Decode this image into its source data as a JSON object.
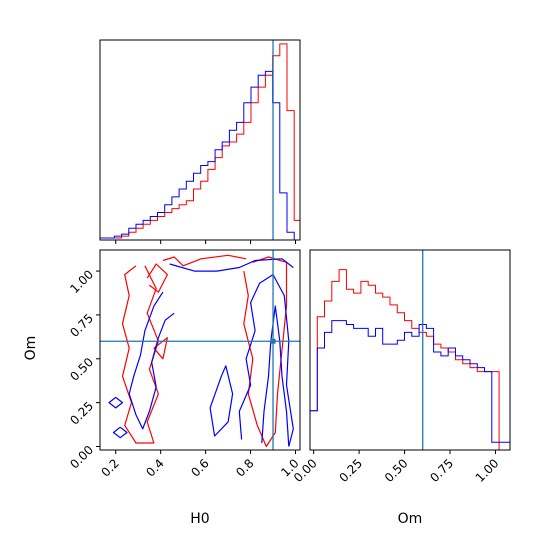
{
  "chart_data": {
    "type": "corner",
    "parameters": [
      "H0",
      "Om"
    ],
    "truth": {
      "H0": 0.9,
      "Om": 0.6
    },
    "colors": {
      "series_a": "#ff0000",
      "series_b": "#0000ff",
      "truth": "#1f77b4"
    },
    "panels": [
      {
        "id": "hist-H0",
        "type": "step-histogram",
        "xlim": [
          0.13,
          1.02
        ],
        "xticks": [
          0.2,
          0.4,
          0.6,
          0.8,
          1.0
        ],
        "bin_edges": [
          0.13,
          0.162,
          0.194,
          0.226,
          0.258,
          0.29,
          0.322,
          0.354,
          0.386,
          0.418,
          0.45,
          0.482,
          0.514,
          0.546,
          0.578,
          0.61,
          0.642,
          0.674,
          0.706,
          0.738,
          0.77,
          0.802,
          0.834,
          0.866,
          0.898,
          0.93,
          0.962,
          0.994,
          1.02
        ],
        "series": [
          {
            "color_key": "series_a",
            "values": [
              0.01,
              0.01,
              0.01,
              0.02,
              0.04,
              0.06,
              0.08,
              0.1,
              0.12,
              0.14,
              0.16,
              0.18,
              0.2,
              0.26,
              0.3,
              0.36,
              0.42,
              0.48,
              0.5,
              0.54,
              0.6,
              0.7,
              0.78,
              0.84,
              0.94,
              1.0,
              0.66,
              0.1
            ]
          },
          {
            "color_key": "series_b",
            "values": [
              0.01,
              0.01,
              0.02,
              0.03,
              0.06,
              0.08,
              0.1,
              0.12,
              0.14,
              0.18,
              0.22,
              0.26,
              0.3,
              0.34,
              0.38,
              0.4,
              0.46,
              0.5,
              0.56,
              0.6,
              0.7,
              0.78,
              0.84,
              0.86,
              0.7,
              0.24,
              0.04,
              0.0
            ]
          }
        ]
      },
      {
        "id": "contour-H0-Om",
        "type": "contour",
        "xlim": [
          0.13,
          1.02
        ],
        "ylim": [
          -0.02,
          1.12
        ],
        "xticks": [
          0.2,
          0.4,
          0.6,
          0.8,
          1.0
        ],
        "yticks": [
          0.0,
          0.25,
          0.5,
          0.75,
          1.0
        ],
        "series": [
          {
            "color_key": "series_a",
            "contours": [
              [
                [
                  0.29,
                  1.03
                ],
                [
                  0.24,
                  0.98
                ],
                [
                  0.26,
                  0.86
                ],
                [
                  0.23,
                  0.7
                ],
                [
                  0.26,
                  0.56
                ],
                [
                  0.23,
                  0.4
                ],
                [
                  0.27,
                  0.25
                ],
                [
                  0.24,
                  0.12
                ],
                [
                  0.29,
                  0.02
                ],
                [
                  0.37,
                  0.02
                ],
                [
                  0.34,
                  0.14
                ],
                [
                  0.39,
                  0.3
                ],
                [
                  0.35,
                  0.44
                ],
                [
                  0.39,
                  0.6
                ],
                [
                  0.34,
                  0.76
                ],
                [
                  0.38,
                  0.9
                ],
                [
                  0.33,
                  1.03
                ]
              ],
              [
                [
                  0.77,
                  1.0
                ],
                [
                  0.79,
                  0.86
                ],
                [
                  0.77,
                  0.7
                ],
                [
                  0.81,
                  0.5
                ],
                [
                  0.79,
                  0.3
                ],
                [
                  0.83,
                  0.12
                ],
                [
                  0.87,
                  0.0
                ],
                [
                  0.91,
                  0.08
                ],
                [
                  0.92,
                  0.3
                ],
                [
                  0.94,
                  0.55
                ],
                [
                  0.96,
                  0.8
                ],
                [
                  0.96,
                  1.05
                ],
                [
                  0.88,
                  1.08
                ],
                [
                  0.81,
                  1.05
                ]
              ],
              [
                [
                  0.41,
                  1.06
                ],
                [
                  0.46,
                  1.08
                ],
                [
                  0.5,
                  1.03
                ],
                [
                  0.58,
                  1.07
                ],
                [
                  0.7,
                  1.09
                ],
                [
                  0.78,
                  1.07
                ]
              ],
              [
                [
                  0.34,
                  0.96
                ],
                [
                  0.38,
                  1.04
                ],
                [
                  0.43,
                  0.98
                ],
                [
                  0.39,
                  0.88
                ],
                [
                  0.35,
                  0.92
                ]
              ],
              [
                [
                  0.37,
                  0.56
                ],
                [
                  0.43,
                  0.62
                ],
                [
                  0.41,
                  0.5
                ],
                [
                  0.37,
                  0.56
                ]
              ]
            ]
          },
          {
            "color_key": "series_b",
            "contours": [
              [
                [
                  0.41,
                  0.88
                ],
                [
                  0.37,
                  0.8
                ],
                [
                  0.33,
                  0.66
                ],
                [
                  0.31,
                  0.52
                ],
                [
                  0.28,
                  0.4
                ],
                [
                  0.26,
                  0.3
                ],
                [
                  0.29,
                  0.18
                ],
                [
                  0.32,
                  0.1
                ],
                [
                  0.35,
                  0.2
                ],
                [
                  0.38,
                  0.34
                ],
                [
                  0.36,
                  0.48
                ],
                [
                  0.39,
                  0.62
                ],
                [
                  0.42,
                  0.72
                ],
                [
                  0.46,
                  0.76
                ]
              ],
              [
                [
                  0.44,
                  1.04
                ],
                [
                  0.55,
                  1.0
                ],
                [
                  0.65,
                  1.0
                ],
                [
                  0.75,
                  1.02
                ],
                [
                  0.82,
                  1.06
                ],
                [
                  0.94,
                  1.07
                ],
                [
                  0.99,
                  1.02
                ]
              ],
              [
                [
                  0.76,
                  0.04
                ],
                [
                  0.75,
                  0.2
                ],
                [
                  0.8,
                  0.35
                ],
                [
                  0.78,
                  0.5
                ],
                [
                  0.82,
                  0.66
                ],
                [
                  0.8,
                  0.82
                ],
                [
                  0.84,
                  0.93
                ],
                [
                  0.9,
                  0.98
                ],
                [
                  0.95,
                  0.86
                ],
                [
                  0.97,
                  0.6
                ],
                [
                  0.96,
                  0.35
                ],
                [
                  0.99,
                  0.1
                ],
                [
                  0.97,
                  0.0
                ]
              ],
              [
                [
                  0.85,
                  0.02
                ],
                [
                  0.86,
                  0.2
                ],
                [
                  0.88,
                  0.4
                ],
                [
                  0.89,
                  0.6
                ],
                [
                  0.91,
                  0.8
                ],
                [
                  0.93,
                  0.6
                ],
                [
                  0.94,
                  0.4
                ],
                [
                  0.96,
                  0.2
                ],
                [
                  0.97,
                  0.0
                ]
              ],
              [
                [
                  0.67,
                  0.4
                ],
                [
                  0.62,
                  0.22
                ],
                [
                  0.64,
                  0.06
                ],
                [
                  0.7,
                  0.14
                ],
                [
                  0.72,
                  0.3
                ],
                [
                  0.69,
                  0.46
                ],
                [
                  0.67,
                  0.4
                ]
              ],
              [
                [
                  0.2,
                  0.28
                ],
                [
                  0.23,
                  0.25
                ],
                [
                  0.2,
                  0.22
                ],
                [
                  0.17,
                  0.25
                ],
                [
                  0.2,
                  0.28
                ]
              ],
              [
                [
                  0.22,
                  0.11
                ],
                [
                  0.25,
                  0.08
                ],
                [
                  0.22,
                  0.05
                ],
                [
                  0.19,
                  0.08
                ],
                [
                  0.22,
                  0.11
                ]
              ]
            ]
          }
        ]
      },
      {
        "id": "hist-Om",
        "type": "step-histogram",
        "xlim": [
          -0.02,
          1.08
        ],
        "xticks": [
          0.0,
          0.25,
          0.5,
          0.75,
          1.0
        ],
        "bin_edges": [
          -0.02,
          0.02,
          0.06,
          0.1,
          0.14,
          0.18,
          0.22,
          0.26,
          0.3,
          0.34,
          0.38,
          0.42,
          0.46,
          0.5,
          0.54,
          0.58,
          0.62,
          0.66,
          0.7,
          0.74,
          0.78,
          0.82,
          0.86,
          0.9,
          0.94,
          0.98,
          1.02,
          1.08
        ],
        "series": [
          {
            "color_key": "series_a",
            "values": [
              0.2,
              0.68,
              0.76,
              0.86,
              0.92,
              0.82,
              0.8,
              0.86,
              0.84,
              0.8,
              0.78,
              0.74,
              0.7,
              0.66,
              0.62,
              0.6,
              0.58,
              0.54,
              0.52,
              0.5,
              0.46,
              0.44,
              0.42,
              0.4,
              0.4,
              0.4,
              0.0
            ]
          },
          {
            "color_key": "series_b",
            "values": [
              0.2,
              0.52,
              0.6,
              0.66,
              0.66,
              0.64,
              0.62,
              0.62,
              0.58,
              0.62,
              0.54,
              0.54,
              0.56,
              0.6,
              0.58,
              0.64,
              0.62,
              0.5,
              0.48,
              0.52,
              0.48,
              0.46,
              0.44,
              0.42,
              0.4,
              0.04,
              0.04
            ]
          }
        ]
      }
    ],
    "xlabels": {
      "contour-H0-Om": "H0",
      "hist-Om": "Om"
    },
    "ylabels": {
      "contour-H0-Om": "Om"
    }
  }
}
